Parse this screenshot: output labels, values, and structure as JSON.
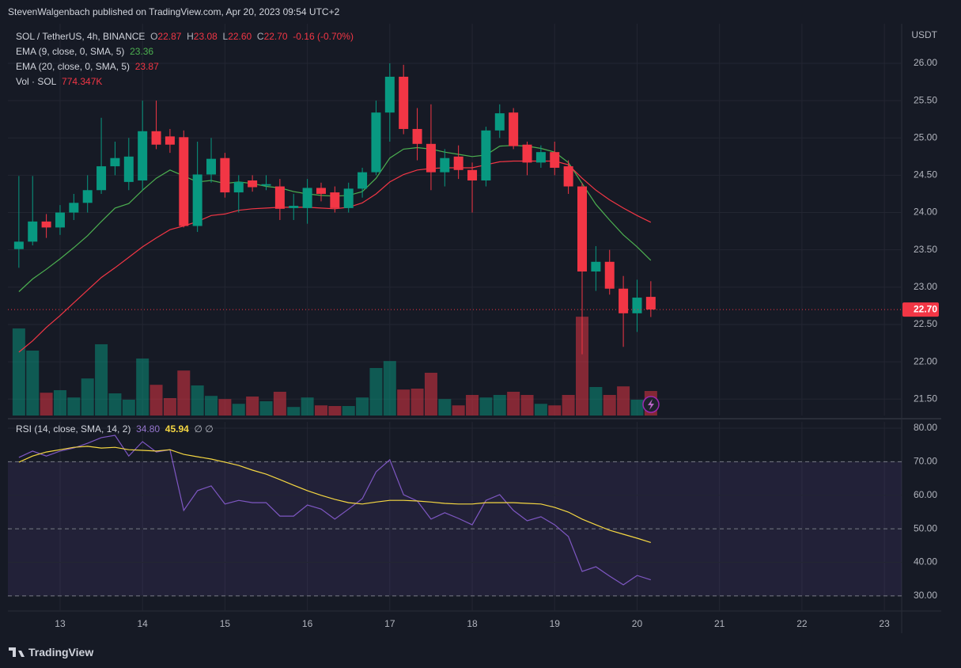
{
  "header": {
    "title": "StevenWalgenbach published on TradingView.com, Apr 20, 2023 09:54 UTC+2"
  },
  "footer": {
    "brand": "TradingView"
  },
  "chart_data": [
    {
      "type": "candlestick",
      "symbol": "SOL / TetherUS, 4h, BINANCE",
      "ohlc_legend": [
        {
          "key": "O",
          "label": "22.87"
        },
        {
          "key": "H",
          "label": "23.08"
        },
        {
          "key": "L",
          "label": "22.60"
        },
        {
          "key": "C",
          "label": "22.70"
        }
      ],
      "change": "-0.16 (-0.70%)",
      "axis_unit": "USDT",
      "up_color": "#089981",
      "down_color": "#f23645",
      "grid": true,
      "xlim": [
        12.367,
        23.21
      ],
      "ylim": [
        21.28,
        26.53
      ],
      "yticks": [
        {
          "value": 21.5,
          "label": "21.50"
        },
        {
          "value": 22,
          "label": "22.00"
        },
        {
          "value": 22.5,
          "label": "22.50"
        },
        {
          "value": 23,
          "label": "23.00"
        },
        {
          "value": 23.5,
          "label": "23.50"
        },
        {
          "value": 24,
          "label": "24.00"
        },
        {
          "value": 24.5,
          "label": "24.50"
        },
        {
          "value": 25,
          "label": "25.00"
        },
        {
          "value": 25.5,
          "label": "25.50"
        },
        {
          "value": 26,
          "label": "26.00"
        }
      ],
      "last_price": {
        "value": 22.7,
        "label": "22.70"
      },
      "x": [
        12.5,
        12.6667,
        12.8333,
        13,
        13.1667,
        13.3333,
        13.5,
        13.6667,
        13.8333,
        14,
        14.1667,
        14.3333,
        14.5,
        14.6667,
        14.8333,
        15,
        15.1667,
        15.3333,
        15.5,
        15.6667,
        15.8333,
        16,
        16.1667,
        16.3333,
        16.5,
        16.6667,
        16.8333,
        17,
        17.1667,
        17.3333,
        17.5,
        17.6667,
        17.8333,
        18,
        18.1667,
        18.3333,
        18.5,
        18.6667,
        18.8333,
        19,
        19.1667,
        19.3333,
        19.5,
        19.6667,
        19.8333,
        20,
        20.1667
      ],
      "open": [
        23.51,
        23.61,
        23.88,
        23.8,
        24.0,
        24.13,
        24.3,
        24.62,
        24.41,
        24.43,
        25.09,
        25.02,
        25.01,
        23.82,
        24.51,
        24.73,
        24.27,
        24.43,
        24.36,
        24.35,
        24.06,
        24.06,
        24.33,
        24.27,
        24.06,
        24.32,
        24.54,
        25.34,
        25.82,
        25.12,
        24.92,
        24.54,
        24.75,
        24.57,
        24.43,
        25.1,
        25.34,
        24.91,
        24.67,
        24.81,
        24.62,
        24.35,
        23.21,
        23.34,
        22.98,
        22.65,
        22.87
      ],
      "high": [
        24.49,
        24.49,
        23.98,
        24.1,
        24.25,
        24.5,
        25.27,
        24.95,
        25.0,
        25.5,
        25.5,
        25.12,
        25.1,
        24.95,
        25.0,
        24.8,
        24.5,
        24.5,
        24.5,
        24.45,
        24.25,
        24.45,
        24.4,
        24.35,
        24.4,
        24.6,
        25.5,
        26.0,
        25.98,
        25.4,
        25.45,
        24.85,
        24.9,
        24.67,
        25.15,
        25.45,
        25.4,
        24.95,
        24.9,
        24.95,
        24.7,
        24.4,
        23.55,
        23.5,
        23.15,
        23.1,
        23.08
      ],
      "low": [
        23.26,
        23.56,
        23.66,
        23.7,
        23.9,
        24.0,
        24.25,
        24.5,
        24.3,
        24.3,
        24.85,
        24.8,
        23.8,
        23.74,
        24.4,
        24.2,
        24.0,
        24.28,
        24.3,
        23.9,
        23.9,
        23.85,
        24.15,
        24.0,
        24.0,
        24.2,
        24.5,
        24.95,
        25.05,
        24.7,
        24.3,
        24.35,
        24.45,
        24.0,
        24.35,
        25.0,
        24.85,
        24.5,
        24.6,
        24.5,
        24.25,
        22.1,
        22.95,
        22.9,
        22.2,
        22.4,
        22.6
      ],
      "close": [
        23.61,
        23.88,
        23.8,
        24.0,
        24.13,
        24.3,
        24.62,
        24.73,
        24.75,
        25.09,
        24.91,
        24.91,
        23.82,
        24.51,
        24.72,
        24.27,
        24.41,
        24.34,
        24.38,
        24.05,
        24.09,
        24.33,
        24.25,
        24.06,
        24.32,
        24.54,
        25.34,
        25.82,
        25.12,
        24.92,
        24.54,
        24.73,
        24.57,
        24.43,
        25.1,
        25.33,
        24.89,
        24.67,
        24.81,
        24.6,
        24.35,
        23.21,
        23.34,
        22.98,
        22.65,
        22.86,
        22.7
      ],
      "volume": {
        "name": "Vol · SOL",
        "legend_value": "774.347K",
        "ylim": [
          0,
          12370000
        ],
        "values": [
          2750000,
          2050000,
          720000,
          800000,
          570000,
          1170000,
          2250000,
          700000,
          500000,
          1800000,
          970000,
          550000,
          1420000,
          950000,
          620000,
          520000,
          370000,
          600000,
          450000,
          750000,
          270000,
          570000,
          320000,
          300000,
          300000,
          570000,
          1500000,
          1720000,
          820000,
          850000,
          1350000,
          520000,
          320000,
          650000,
          570000,
          650000,
          750000,
          650000,
          370000,
          320000,
          650000,
          3120000,
          900000,
          650000,
          920000,
          500000,
          774347
        ]
      },
      "series": [
        {
          "name": "EMA (9, close, 0, SMA, 5)",
          "color": "#4caf50",
          "values": [
            22.94,
            23.11,
            23.24,
            23.38,
            23.53,
            23.69,
            23.88,
            24.06,
            24.12,
            24.3,
            24.46,
            24.57,
            24.49,
            24.41,
            24.43,
            24.39,
            24.41,
            24.39,
            24.35,
            24.33,
            24.28,
            24.25,
            24.23,
            24.22,
            24.23,
            24.28,
            24.46,
            24.73,
            24.85,
            24.87,
            24.85,
            24.81,
            24.78,
            24.75,
            24.77,
            24.89,
            24.9,
            24.89,
            24.86,
            24.81,
            24.67,
            24.39,
            24.11,
            23.9,
            23.7,
            23.54,
            23.36
          ]
        },
        {
          "name": "EMA (20, close, 0, SMA, 5)",
          "color": "#f23645",
          "values": [
            22.13,
            22.28,
            22.46,
            22.62,
            22.79,
            22.96,
            23.13,
            23.26,
            23.4,
            23.54,
            23.66,
            23.77,
            23.82,
            23.88,
            23.96,
            23.98,
            24.03,
            24.05,
            24.06,
            24.07,
            24.07,
            24.07,
            24.06,
            24.05,
            24.07,
            24.13,
            24.25,
            24.41,
            24.51,
            24.57,
            24.59,
            24.6,
            24.6,
            24.6,
            24.64,
            24.68,
            24.69,
            24.69,
            24.69,
            24.69,
            24.64,
            24.46,
            24.3,
            24.17,
            24.06,
            23.96,
            23.87
          ]
        }
      ]
    },
    {
      "type": "line",
      "title": "RSI (14, close, SMA, 14, 2)",
      "extra": "∅  ∅",
      "grid": true,
      "xlim": [
        12.367,
        23.21
      ],
      "ylim": [
        25.5,
        81.9
      ],
      "xticks": [
        13,
        14,
        15,
        16,
        17,
        18,
        19,
        20,
        21,
        22,
        23
      ],
      "yticks": [
        {
          "value": 30,
          "label": "30.00"
        },
        {
          "value": 40,
          "label": "40.00"
        },
        {
          "value": 50,
          "label": "50.00"
        },
        {
          "value": 60,
          "label": "60.00"
        },
        {
          "value": 70,
          "label": "70.00"
        },
        {
          "value": 80,
          "label": "80.00"
        }
      ],
      "band": [
        30,
        70
      ],
      "levels": [
        70,
        50,
        30
      ],
      "x": [
        12.5,
        12.6667,
        12.8333,
        13,
        13.1667,
        13.3333,
        13.5,
        13.6667,
        13.8333,
        14,
        14.1667,
        14.3333,
        14.5,
        14.6667,
        14.8333,
        15,
        15.1667,
        15.3333,
        15.5,
        15.6667,
        15.8333,
        16,
        16.1667,
        16.3333,
        16.5,
        16.6667,
        16.8333,
        17,
        17.1667,
        17.3333,
        17.5,
        17.6667,
        17.8333,
        18,
        18.1667,
        18.3333,
        18.5,
        18.6667,
        18.8333,
        19,
        19.1667,
        19.3333,
        19.5,
        19.6667,
        19.8333,
        20,
        20.1667
      ],
      "series": [
        {
          "color": "#7e57c2",
          "legend_value": "34.80",
          "values": [
            71.3,
            73.2,
            71.7,
            73.2,
            74.1,
            75.5,
            77.2,
            77.9,
            71.7,
            76.0,
            72.9,
            73.6,
            55.5,
            61.4,
            62.8,
            57.4,
            58.5,
            57.8,
            57.8,
            53.8,
            53.8,
            57.1,
            55.9,
            52.9,
            55.9,
            59.0,
            67.0,
            70.6,
            60.2,
            58.3,
            52.9,
            54.8,
            53.1,
            51.2,
            58.5,
            60.2,
            55.5,
            52.4,
            53.6,
            51.2,
            47.7,
            37.3,
            38.7,
            35.9,
            33.3,
            36.1,
            34.8
          ]
        },
        {
          "color": "#f5d742",
          "values": [
            69.9,
            71.7,
            72.9,
            73.6,
            74.3,
            74.6,
            74.1,
            74.3,
            73.6,
            73.4,
            73.2,
            73.6,
            72.2,
            71.5,
            70.8,
            69.9,
            68.9,
            67.5,
            66.3,
            64.7,
            63.0,
            61.4,
            60.0,
            58.8,
            57.8,
            57.4,
            58.0,
            58.5,
            58.5,
            58.3,
            58.0,
            57.6,
            57.4,
            57.4,
            57.8,
            57.8,
            57.8,
            57.6,
            57.4,
            56.4,
            55.0,
            52.9,
            51.2,
            49.6,
            48.4,
            47.2,
            45.94
          ]
        }
      ]
    }
  ]
}
